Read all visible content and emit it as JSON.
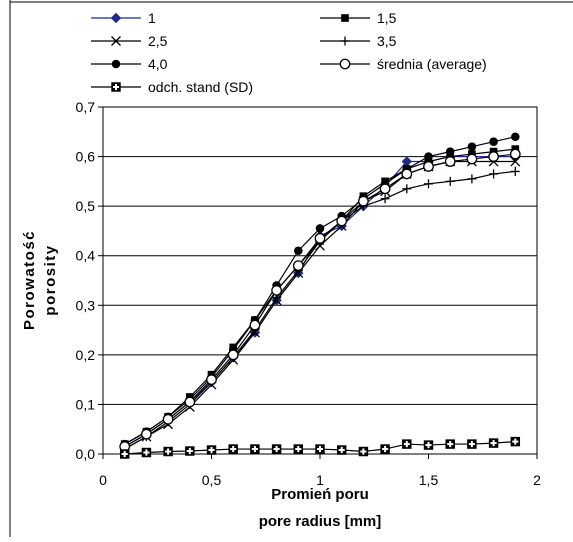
{
  "chart_data": {
    "type": "line",
    "xlabel": [
      "Promień poru",
      "pore radius [mm]"
    ],
    "ylabel": [
      "Porowatość",
      "porosity"
    ],
    "xlim": [
      0,
      2
    ],
    "ylim": [
      0,
      0.7
    ],
    "x_ticks": [
      "0",
      "0,5",
      "1",
      "1,5",
      "2"
    ],
    "y_ticks": [
      "0,0",
      "0,1",
      "0,2",
      "0,3",
      "0,4",
      "0,5",
      "0,6",
      "0,7"
    ],
    "grid": "horizontal",
    "legend_position": "top",
    "x": [
      0.1,
      0.2,
      0.3,
      0.4,
      0.5,
      0.6,
      0.7,
      0.8,
      0.9,
      1.0,
      1.1,
      1.2,
      1.3,
      1.4,
      1.5,
      1.6,
      1.7,
      1.8,
      1.9
    ],
    "series": [
      {
        "name": "1",
        "marker": "diamond",
        "color": "#1f2a8c",
        "values": [
          0.015,
          0.04,
          0.07,
          0.105,
          0.145,
          0.195,
          0.245,
          0.31,
          0.365,
          0.44,
          0.46,
          0.5,
          0.54,
          0.59,
          0.59,
          0.6,
          0.6,
          0.6,
          0.6
        ]
      },
      {
        "name": "1,5",
        "marker": "square",
        "color": "#000000",
        "values": [
          0.02,
          0.045,
          0.075,
          0.115,
          0.16,
          0.215,
          0.27,
          0.33,
          0.38,
          0.43,
          0.47,
          0.52,
          0.55,
          0.575,
          0.59,
          0.6,
          0.605,
          0.61,
          0.615
        ]
      },
      {
        "name": "2,5",
        "marker": "x",
        "color": "#000000",
        "values": [
          0.01,
          0.035,
          0.06,
          0.095,
          0.14,
          0.19,
          0.245,
          0.31,
          0.365,
          0.42,
          0.46,
          0.51,
          0.53,
          0.565,
          0.58,
          0.59,
          0.59,
          0.59,
          0.59
        ]
      },
      {
        "name": "3,5",
        "marker": "plus",
        "color": "#000000",
        "values": [
          0.01,
          0.035,
          0.065,
          0.1,
          0.145,
          0.195,
          0.25,
          0.315,
          0.37,
          0.43,
          0.47,
          0.5,
          0.515,
          0.535,
          0.545,
          0.55,
          0.555,
          0.565,
          0.57
        ]
      },
      {
        "name": "4,0",
        "marker": "circle-filled",
        "color": "#000000",
        "values": [
          0.02,
          0.045,
          0.075,
          0.11,
          0.155,
          0.21,
          0.27,
          0.34,
          0.41,
          0.455,
          0.48,
          0.515,
          0.545,
          0.575,
          0.6,
          0.61,
          0.62,
          0.63,
          0.64
        ]
      },
      {
        "name": "średnia (average)",
        "marker": "circle-open",
        "color": "#000000",
        "values": [
          0.015,
          0.04,
          0.07,
          0.105,
          0.15,
          0.2,
          0.26,
          0.33,
          0.38,
          0.435,
          0.47,
          0.51,
          0.535,
          0.565,
          0.58,
          0.59,
          0.595,
          0.6,
          0.605
        ]
      },
      {
        "name": "odch. stand (SD)",
        "marker": "square-plus",
        "color": "#000000",
        "values": [
          0.0,
          0.003,
          0.005,
          0.006,
          0.008,
          0.01,
          0.01,
          0.01,
          0.01,
          0.01,
          0.008,
          0.005,
          0.01,
          0.02,
          0.018,
          0.02,
          0.02,
          0.022,
          0.025
        ]
      }
    ]
  }
}
